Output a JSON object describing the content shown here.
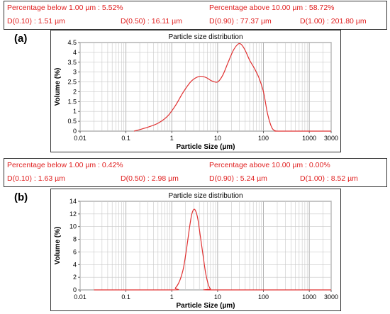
{
  "panels": [
    {
      "label": "(a)",
      "stats": {
        "pct_below": "Percentage below 1.00 µm : 5.52%",
        "pct_above": "Percentage above 10.00 µm : 58.72%",
        "d10": "D(0.10) : 1.51 µm",
        "d50": "D(0.50) : 16.11 µm",
        "d90": "D(0.90) : 77.37 µm",
        "d100": "D(1.00) : 201.80 µm"
      }
    },
    {
      "label": "(b)",
      "stats": {
        "pct_below": "Percentage below 1.00 µm : 0.42%",
        "pct_above": "Percentage above 10.00 µm : 0.00%",
        "d10": "D(0.10) : 1.63 µm",
        "d50": "D(0.50) : 2.98 µm",
        "d90": "D(0.90) : 5.24 µm",
        "d100": "D(1.00) : 8.52 µm"
      }
    }
  ],
  "colors": {
    "curve": "#e03030",
    "stat_text": "#e02020",
    "grid": "#c8c8c8"
  },
  "chart_data": [
    {
      "type": "line",
      "title": "Particle size distribution",
      "xlabel": "Particle Size (µm)",
      "ylabel": "Volume (%)",
      "xscale": "log",
      "xlim": [
        0.01,
        3000
      ],
      "ylim": [
        0,
        4.5
      ],
      "xticks": [
        "0.01",
        "0.1",
        "1",
        "10",
        "100",
        "1000",
        "3000"
      ],
      "yticks": [
        "0",
        "0.5",
        "1",
        "1.5",
        "2",
        "2.5",
        "3",
        "3.5",
        "4",
        "4.5"
      ],
      "grid": true,
      "x": [
        0.15,
        0.3,
        0.5,
        0.8,
        1.2,
        1.8,
        2.7,
        4,
        5.5,
        7.5,
        10,
        13,
        17,
        22,
        28,
        33,
        40,
        50,
        63,
        80,
        100,
        120,
        140,
        160,
        180,
        200,
        220,
        3000
      ],
      "y": [
        0,
        0.2,
        0.4,
        0.75,
        1.3,
        2.0,
        2.55,
        2.78,
        2.73,
        2.55,
        2.5,
        2.85,
        3.5,
        4.1,
        4.42,
        4.4,
        4.1,
        3.6,
        3.2,
        2.7,
        2.0,
        1.0,
        0.4,
        0.1,
        0.02,
        0,
        0,
        0
      ]
    },
    {
      "type": "line",
      "title": "Particle size distribution",
      "xlabel": "Particle Size (µm)",
      "ylabel": "Volume (%)",
      "xscale": "log",
      "xlim": [
        0.01,
        3000
      ],
      "ylim": [
        0,
        14
      ],
      "xticks": [
        "0.01",
        "0.1",
        "1",
        "10",
        "100",
        "1000",
        "3000"
      ],
      "yticks": [
        "0",
        "2",
        "4",
        "6",
        "8",
        "10",
        "12",
        "14"
      ],
      "grid": true,
      "x": [
        0.02,
        1.0,
        1.2,
        1.5,
        1.8,
        2.1,
        2.4,
        2.7,
        3.0,
        3.3,
        3.7,
        4.2,
        4.8,
        5.5,
        6.3,
        7.0,
        8.0,
        3000
      ],
      "y": [
        0,
        0,
        0.3,
        1.5,
        3.5,
        6.5,
        9.5,
        11.8,
        12.7,
        12.5,
        11.2,
        8.5,
        5.5,
        2.6,
        0.8,
        0.15,
        0,
        0
      ]
    }
  ]
}
